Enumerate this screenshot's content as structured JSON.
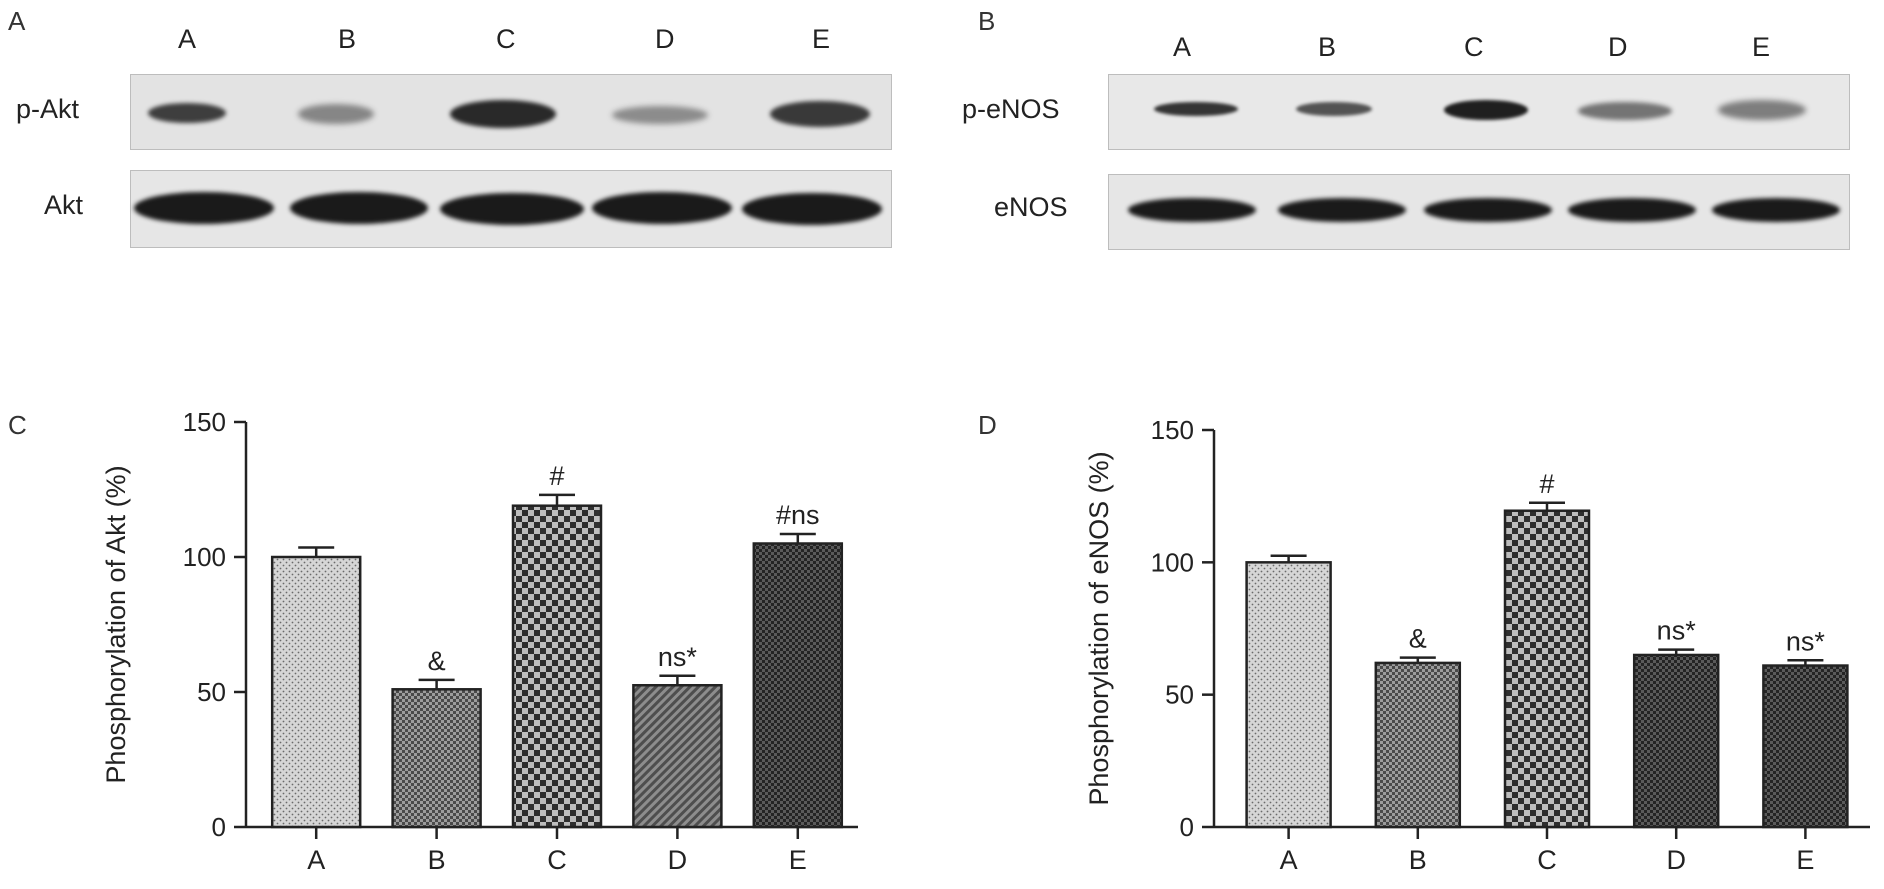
{
  "panels": {
    "a": {
      "letter": "A"
    },
    "b": {
      "letter": "B"
    },
    "c": {
      "letter": "C"
    },
    "d": {
      "letter": "D"
    }
  },
  "blots": [
    {
      "lanes": [
        "A",
        "B",
        "C",
        "D",
        "E"
      ],
      "rows": [
        {
          "label": "p-Akt",
          "band_intensity": [
            0.8,
            0.45,
            0.95,
            0.4,
            0.85
          ]
        },
        {
          "label": "Akt",
          "band_intensity": [
            1.0,
            1.0,
            1.0,
            1.0,
            1.0
          ]
        }
      ]
    },
    {
      "lanes": [
        "A",
        "B",
        "C",
        "D",
        "E"
      ],
      "rows": [
        {
          "label": "p-eNOS",
          "band_intensity": [
            0.85,
            0.7,
            0.95,
            0.55,
            0.5
          ]
        },
        {
          "label": "eNOS",
          "band_intensity": [
            1.0,
            1.0,
            1.0,
            1.0,
            1.0
          ]
        }
      ]
    }
  ],
  "chart_data": [
    {
      "type": "bar",
      "categories": [
        "A",
        "B",
        "C",
        "D",
        "E"
      ],
      "values": [
        100,
        51,
        119,
        52.5,
        105
      ],
      "errors": [
        3.5,
        3.5,
        4,
        3.5,
        3.5
      ],
      "annotations": [
        "",
        "&",
        "#",
        "ns*",
        "#ns"
      ],
      "patterns": [
        "dots",
        "checker-fine",
        "checker",
        "diagonal",
        "checker-dark"
      ],
      "ylabel": "Phosphorylation of Akt (%)",
      "xlabel": "",
      "title": "",
      "ylim": [
        0,
        150
      ],
      "yticks": [
        0,
        50,
        100,
        150
      ],
      "grid": false
    },
    {
      "type": "bar",
      "categories": [
        "A",
        "B",
        "C",
        "D",
        "E"
      ],
      "values": [
        100,
        62,
        119.5,
        65,
        61
      ],
      "errors": [
        2.5,
        2,
        3,
        2,
        2
      ],
      "annotations": [
        "",
        "&",
        "#",
        "ns*",
        "ns*"
      ],
      "patterns": [
        "dots",
        "checker-fine",
        "checker",
        "checker-dark",
        "checker-dark"
      ],
      "ylabel": "Phosphorylation of eNOS (%)",
      "xlabel": "",
      "title": "",
      "ylim": [
        0,
        150
      ],
      "yticks": [
        0,
        50,
        100,
        150
      ],
      "grid": false
    }
  ]
}
